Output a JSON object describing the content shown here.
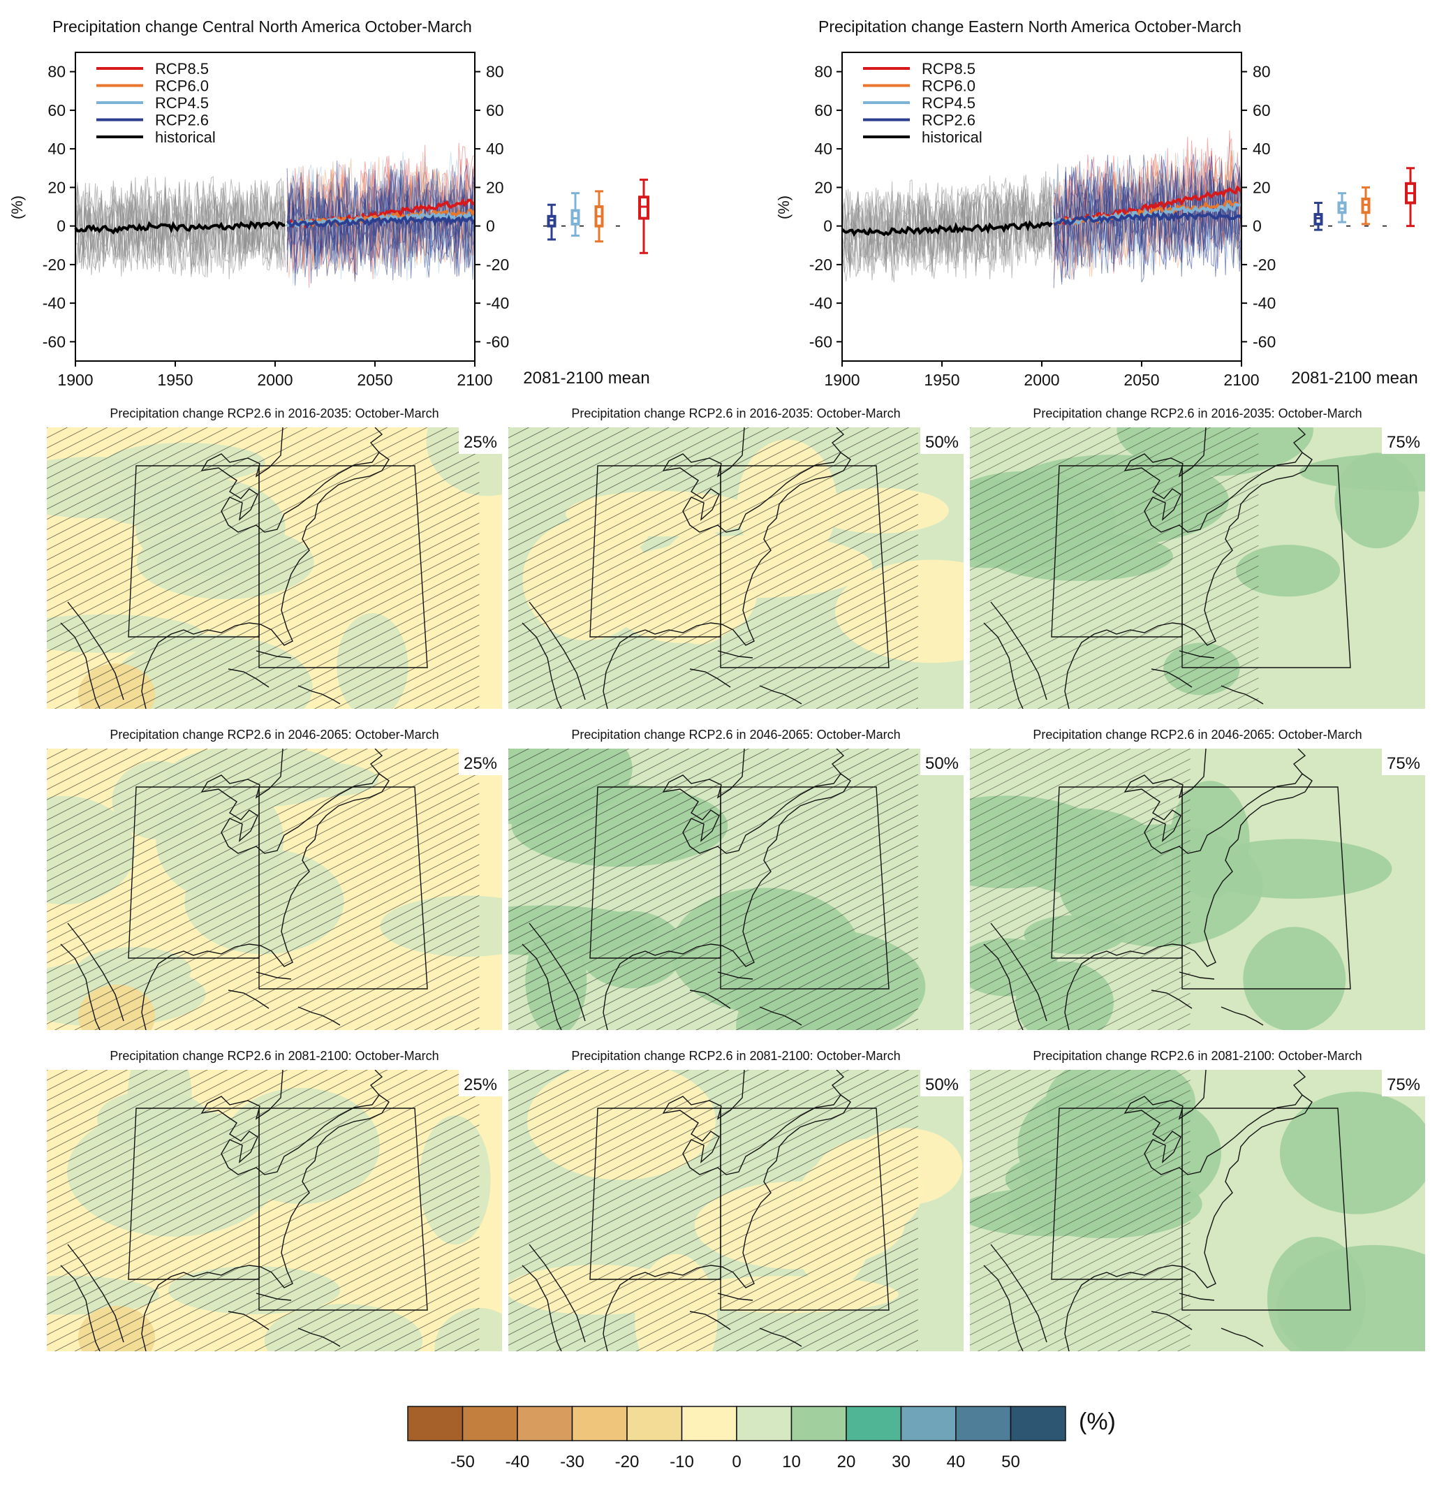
{
  "colors": {
    "rcp85": "#d7191c",
    "rcp60": "#e8772e",
    "rcp45": "#7fb3d5",
    "rcp26": "#2c3e8f",
    "historical": "#000000",
    "hist_band": "#8a8a8a"
  },
  "chart_data": [
    {
      "type": "line",
      "title": "Precipitation change Central North America October-March",
      "ylabel": "(%)",
      "xlim": [
        1900,
        2100
      ],
      "ylim": [
        -70,
        90
      ],
      "x_ticks": [
        "1900",
        "1950",
        "2000",
        "2050",
        "2100"
      ],
      "y_ticks": [
        "80",
        "60",
        "40",
        "20",
        "0",
        "-20",
        "-40",
        "-60"
      ],
      "legend_position": "top-left",
      "series": [
        {
          "name": "RCP8.5",
          "key": "rcp85",
          "x": [
            2006,
            2020,
            2040,
            2060,
            2080,
            2100
          ],
          "values": [
            1,
            2,
            4,
            7,
            10,
            13
          ]
        },
        {
          "name": "RCP6.0",
          "key": "rcp60",
          "x": [
            2006,
            2020,
            2040,
            2060,
            2080,
            2100
          ],
          "values": [
            1,
            2,
            3,
            5,
            6,
            7
          ]
        },
        {
          "name": "RCP4.5",
          "key": "rcp45",
          "x": [
            2006,
            2020,
            2040,
            2060,
            2080,
            2100
          ],
          "values": [
            1,
            2,
            3,
            4,
            5,
            5
          ]
        },
        {
          "name": "RCP2.6",
          "key": "rcp26",
          "x": [
            2006,
            2020,
            2040,
            2060,
            2080,
            2100
          ],
          "values": [
            1,
            1,
            2,
            3,
            3,
            3
          ]
        },
        {
          "name": "historical",
          "key": "historical",
          "x": [
            1900,
            1920,
            1940,
            1960,
            1980,
            2000,
            2005
          ],
          "values": [
            -1,
            -2,
            0,
            -1,
            0,
            1,
            1
          ]
        }
      ],
      "box_label": "2081-2100 mean",
      "boxes": [
        {
          "key": "rcp26",
          "min": -7,
          "q1": 0,
          "median": 3,
          "q3": 5,
          "max": 11
        },
        {
          "key": "rcp45",
          "min": -5,
          "q1": 1,
          "median": 4,
          "q3": 8,
          "max": 17
        },
        {
          "key": "rcp60",
          "min": -8,
          "q1": 0,
          "median": 5,
          "q3": 10,
          "max": 18
        },
        {
          "key": "rcp85",
          "min": -14,
          "q1": 4,
          "median": 10,
          "q3": 15,
          "max": 24
        }
      ]
    },
    {
      "type": "line",
      "title": "Precipitation change Eastern North America October-March",
      "ylabel": "(%)",
      "xlim": [
        1900,
        2100
      ],
      "ylim": [
        -70,
        90
      ],
      "x_ticks": [
        "1900",
        "1950",
        "2000",
        "2050",
        "2100"
      ],
      "y_ticks": [
        "80",
        "60",
        "40",
        "20",
        "0",
        "-20",
        "-40",
        "-60"
      ],
      "legend_position": "top-left",
      "series": [
        {
          "name": "RCP8.5",
          "key": "rcp85",
          "x": [
            2006,
            2020,
            2040,
            2060,
            2080,
            2100
          ],
          "values": [
            2,
            4,
            7,
            11,
            15,
            19
          ]
        },
        {
          "name": "RCP6.0",
          "key": "rcp60",
          "x": [
            2006,
            2020,
            2040,
            2060,
            2080,
            2100
          ],
          "values": [
            2,
            3,
            5,
            8,
            10,
            12
          ]
        },
        {
          "name": "RCP4.5",
          "key": "rcp45",
          "x": [
            2006,
            2020,
            2040,
            2060,
            2080,
            2100
          ],
          "values": [
            2,
            3,
            5,
            7,
            9,
            10
          ]
        },
        {
          "name": "RCP2.6",
          "key": "rcp26",
          "x": [
            2006,
            2020,
            2040,
            2060,
            2080,
            2100
          ],
          "values": [
            2,
            3,
            4,
            5,
            5,
            5
          ]
        },
        {
          "name": "historical",
          "key": "historical",
          "x": [
            1900,
            1920,
            1940,
            1960,
            1980,
            2000,
            2005
          ],
          "values": [
            -3,
            -3,
            -2,
            -1,
            -1,
            1,
            2
          ]
        }
      ],
      "box_label": "2081-2100 mean",
      "boxes": [
        {
          "key": "rcp26",
          "min": -2,
          "q1": 1,
          "median": 4,
          "q3": 6,
          "max": 12
        },
        {
          "key": "rcp45",
          "min": 2,
          "q1": 7,
          "median": 9,
          "q3": 12,
          "max": 17
        },
        {
          "key": "rcp60",
          "min": 1,
          "q1": 7,
          "median": 11,
          "q3": 14,
          "max": 20
        },
        {
          "key": "rcp85",
          "min": 0,
          "q1": 12,
          "median": 17,
          "q3": 22,
          "max": 30
        }
      ]
    },
    {
      "type": "heatmap",
      "colorbar": {
        "unit": "(%)",
        "tick_labels": [
          "-50",
          "-40",
          "-30",
          "-20",
          "-10",
          "0",
          "10",
          "20",
          "30",
          "40",
          "50"
        ],
        "colors": [
          "#a6612a",
          "#c37f3e",
          "#d89c5e",
          "#eec57b",
          "#f2dc96",
          "#fff2b8",
          "#d6e8c1",
          "#a1cf9d",
          "#4fb595",
          "#70a4b8",
          "#4f7f98",
          "#2c5672"
        ]
      },
      "maps": [
        {
          "title": "Precipitation change RCP2.6 in 2016-2035: October-March",
          "pct": "25%",
          "base": 5,
          "patch": 6,
          "seed": 11,
          "hatch": 0.95
        },
        {
          "title": "Precipitation change RCP2.6 in 2016-2035: October-March",
          "pct": "50%",
          "base": 6,
          "patch": 5,
          "seed": 12,
          "hatch": 0.9
        },
        {
          "title": "Precipitation change RCP2.6 in 2016-2035: October-March",
          "pct": "75%",
          "base": 6,
          "patch": 7,
          "seed": 13,
          "hatch": 0.45
        },
        {
          "title": "Precipitation change RCP2.6 in 2046-2065: October-March",
          "pct": "25%",
          "base": 5,
          "patch": 6,
          "seed": 21,
          "hatch": 0.95
        },
        {
          "title": "Precipitation change RCP2.6 in 2046-2065: October-March",
          "pct": "50%",
          "base": 6,
          "patch": 7,
          "seed": 22,
          "hatch": 0.9
        },
        {
          "title": "Precipitation change RCP2.6 in 2046-2065: October-March",
          "pct": "75%",
          "base": 6,
          "patch": 7,
          "seed": 23,
          "hatch": 0.3
        },
        {
          "title": "Precipitation change RCP2.6 in 2081-2100: October-March",
          "pct": "25%",
          "base": 5,
          "patch": 6,
          "seed": 31,
          "hatch": 0.95
        },
        {
          "title": "Precipitation change RCP2.6 in 2081-2100: October-March",
          "pct": "50%",
          "base": 6,
          "patch": 5,
          "seed": 32,
          "hatch": 0.9
        },
        {
          "title": "Precipitation change RCP2.6 in 2081-2100: October-March",
          "pct": "75%",
          "base": 6,
          "patch": 7,
          "seed": 33,
          "hatch": 0.3
        }
      ]
    }
  ]
}
